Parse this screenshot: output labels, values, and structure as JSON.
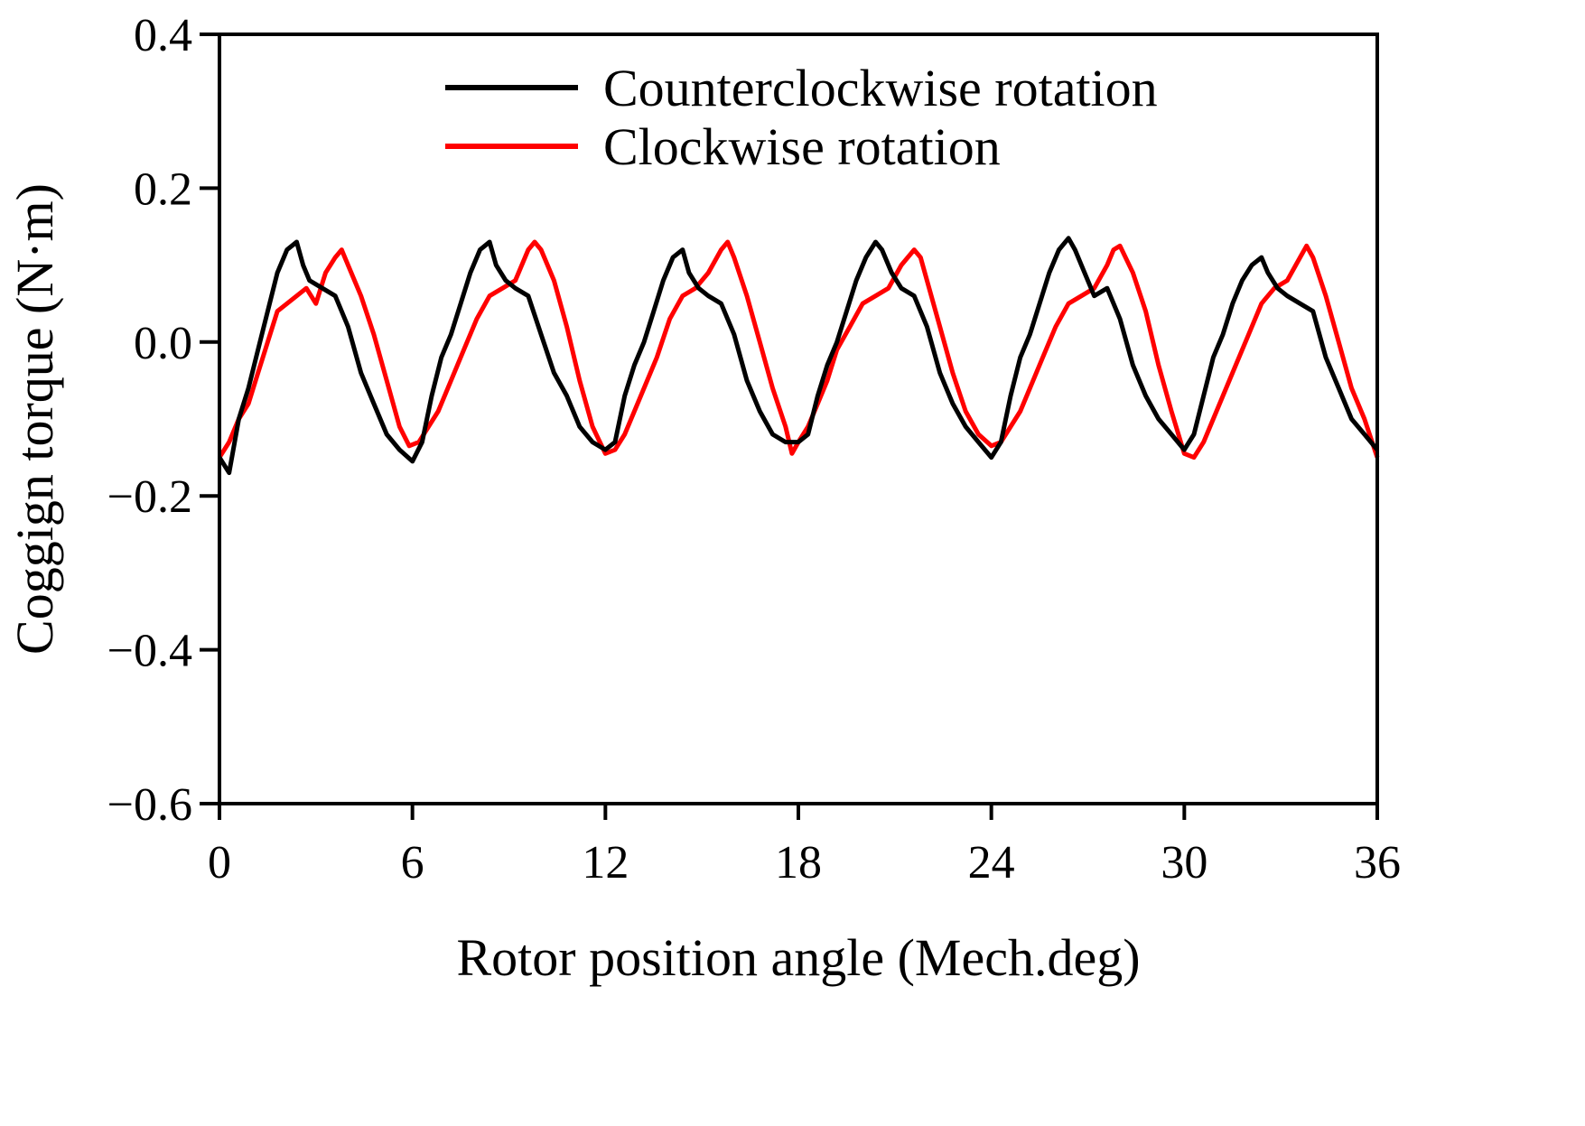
{
  "chart_data": {
    "type": "line",
    "title": "",
    "xlabel": "Rotor position angle (Mech.deg)",
    "ylabel": "Coggign torque (N·m)",
    "xlim": [
      0,
      36
    ],
    "ylim": [
      -0.6,
      0.4
    ],
    "xticks": [
      0,
      6,
      12,
      18,
      24,
      30,
      36
    ],
    "xtick_labels": [
      "0",
      "6",
      "12",
      "18",
      "24",
      "30",
      "36"
    ],
    "yticks": [
      -0.6,
      -0.4,
      -0.2,
      0.0,
      0.2,
      0.4
    ],
    "ytick_labels": [
      "−0.6",
      "−0.4",
      "−0.2",
      "0.0",
      "0.2",
      "0.4"
    ],
    "grid": false,
    "legend_position": "top-center",
    "series": [
      {
        "name": "Counterclockwise rotation",
        "color": "#000000",
        "x": [
          0,
          0.3,
          0.6,
          0.9,
          1.2,
          1.5,
          1.8,
          2.1,
          2.4,
          2.6,
          2.8,
          3.2,
          3.6,
          4.0,
          4.4,
          4.8,
          5.2,
          5.6,
          6.0,
          6.3,
          6.6,
          6.9,
          7.2,
          7.5,
          7.8,
          8.1,
          8.4,
          8.6,
          8.9,
          9.2,
          9.6,
          10.0,
          10.4,
          10.8,
          11.2,
          11.6,
          12.0,
          12.3,
          12.6,
          12.9,
          13.2,
          13.5,
          13.8,
          14.1,
          14.4,
          14.6,
          14.9,
          15.2,
          15.6,
          16.0,
          16.4,
          16.8,
          17.2,
          17.6,
          18.0,
          18.3,
          18.6,
          18.9,
          19.2,
          19.5,
          19.8,
          20.1,
          20.4,
          20.6,
          20.9,
          21.2,
          21.6,
          22.0,
          22.4,
          22.8,
          23.2,
          23.6,
          24.0,
          24.3,
          24.6,
          24.9,
          25.2,
          25.5,
          25.8,
          26.1,
          26.4,
          26.6,
          26.9,
          27.2,
          27.6,
          28.0,
          28.4,
          28.8,
          29.2,
          29.6,
          30.0,
          30.3,
          30.6,
          30.9,
          31.2,
          31.5,
          31.8,
          32.1,
          32.4,
          32.6,
          32.9,
          33.2,
          33.6,
          34.0,
          34.4,
          34.8,
          35.2,
          35.6,
          36.0
        ],
        "y": [
          -0.15,
          -0.17,
          -0.1,
          -0.06,
          -0.01,
          0.04,
          0.09,
          0.12,
          0.13,
          0.1,
          0.08,
          0.07,
          0.06,
          0.02,
          -0.04,
          -0.08,
          -0.12,
          -0.14,
          -0.155,
          -0.13,
          -0.07,
          -0.02,
          0.01,
          0.05,
          0.09,
          0.12,
          0.13,
          0.1,
          0.08,
          0.07,
          0.06,
          0.01,
          -0.04,
          -0.07,
          -0.11,
          -0.13,
          -0.14,
          -0.13,
          -0.07,
          -0.03,
          0.0,
          0.04,
          0.08,
          0.11,
          0.12,
          0.09,
          0.07,
          0.06,
          0.05,
          0.01,
          -0.05,
          -0.09,
          -0.12,
          -0.13,
          -0.13,
          -0.12,
          -0.07,
          -0.03,
          0.0,
          0.04,
          0.08,
          0.11,
          0.13,
          0.12,
          0.09,
          0.07,
          0.06,
          0.02,
          -0.04,
          -0.08,
          -0.11,
          -0.13,
          -0.15,
          -0.13,
          -0.07,
          -0.02,
          0.01,
          0.05,
          0.09,
          0.12,
          0.135,
          0.12,
          0.09,
          0.06,
          0.07,
          0.03,
          -0.03,
          -0.07,
          -0.1,
          -0.12,
          -0.14,
          -0.12,
          -0.07,
          -0.02,
          0.01,
          0.05,
          0.08,
          0.1,
          0.11,
          0.09,
          0.07,
          0.06,
          0.05,
          0.04,
          -0.02,
          -0.06,
          -0.1,
          -0.12,
          -0.14
        ]
      },
      {
        "name": "Clockwise rotation",
        "color": "#ff0000",
        "x": [
          0,
          0.3,
          0.6,
          0.9,
          1.2,
          1.5,
          1.8,
          2.1,
          2.4,
          2.7,
          3.0,
          3.3,
          3.6,
          3.8,
          4.0,
          4.4,
          4.8,
          5.2,
          5.6,
          5.9,
          6.2,
          6.5,
          6.8,
          7.2,
          7.6,
          8.0,
          8.4,
          8.8,
          9.2,
          9.6,
          9.8,
          10.0,
          10.4,
          10.8,
          11.2,
          11.6,
          12.0,
          12.3,
          12.6,
          12.9,
          13.2,
          13.6,
          14.0,
          14.4,
          14.8,
          15.2,
          15.6,
          15.8,
          16.0,
          16.4,
          16.8,
          17.2,
          17.6,
          17.8,
          18.0,
          18.3,
          18.6,
          18.9,
          19.2,
          19.6,
          20.0,
          20.4,
          20.8,
          21.2,
          21.6,
          21.8,
          22.0,
          22.4,
          22.8,
          23.2,
          23.6,
          24.0,
          24.3,
          24.6,
          24.9,
          25.2,
          25.6,
          26.0,
          26.4,
          26.8,
          27.2,
          27.6,
          27.8,
          28.0,
          28.4,
          28.8,
          29.2,
          29.6,
          30.0,
          30.3,
          30.6,
          30.9,
          31.2,
          31.6,
          32.0,
          32.4,
          32.8,
          33.2,
          33.6,
          33.8,
          34.0,
          34.4,
          34.8,
          35.2,
          35.6,
          36.0
        ],
        "y": [
          -0.15,
          -0.13,
          -0.1,
          -0.08,
          -0.04,
          0.0,
          0.04,
          0.05,
          0.06,
          0.07,
          0.05,
          0.09,
          0.11,
          0.12,
          0.1,
          0.06,
          0.01,
          -0.05,
          -0.11,
          -0.135,
          -0.13,
          -0.11,
          -0.09,
          -0.05,
          -0.01,
          0.03,
          0.06,
          0.07,
          0.08,
          0.12,
          0.13,
          0.12,
          0.08,
          0.02,
          -0.05,
          -0.11,
          -0.145,
          -0.14,
          -0.12,
          -0.09,
          -0.06,
          -0.02,
          0.03,
          0.06,
          0.07,
          0.09,
          0.12,
          0.13,
          0.11,
          0.06,
          0.0,
          -0.06,
          -0.11,
          -0.145,
          -0.13,
          -0.11,
          -0.08,
          -0.05,
          -0.01,
          0.02,
          0.05,
          0.06,
          0.07,
          0.1,
          0.12,
          0.11,
          0.08,
          0.02,
          -0.04,
          -0.09,
          -0.12,
          -0.135,
          -0.13,
          -0.11,
          -0.09,
          -0.06,
          -0.02,
          0.02,
          0.05,
          0.06,
          0.07,
          0.1,
          0.12,
          0.125,
          0.09,
          0.04,
          -0.03,
          -0.09,
          -0.145,
          -0.15,
          -0.13,
          -0.1,
          -0.07,
          -0.03,
          0.01,
          0.05,
          0.07,
          0.08,
          0.11,
          0.125,
          0.11,
          0.06,
          0.0,
          -0.06,
          -0.1,
          -0.15
        ]
      }
    ]
  }
}
